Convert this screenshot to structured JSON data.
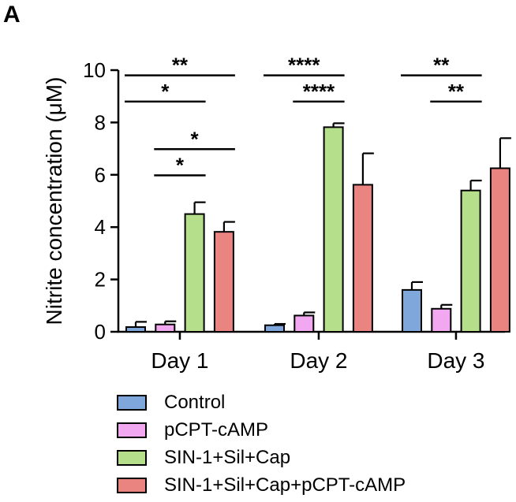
{
  "panel_label": "A",
  "colors": {
    "Control": "#7fa7dc",
    "pCPT-cAMP": "#f2a8f0",
    "SIN-1+Sil+Cap": "#b6df8c",
    "SIN-1+Sil+Cap+pCPT-cAMP": "#e98481"
  },
  "chart_data": {
    "type": "bar",
    "categories": [
      "Day 1",
      "Day 2",
      "Day 3"
    ],
    "ylabel": "Nitrite concentration (μM)",
    "ylim": [
      0,
      10
    ],
    "yticks": [
      0,
      2,
      4,
      6,
      8,
      10
    ],
    "series": [
      {
        "name": "Control",
        "values": [
          0.18,
          0.25,
          1.6
        ],
        "errors": [
          0.2,
          0.05,
          0.3
        ]
      },
      {
        "name": "pCPT-cAMP",
        "values": [
          0.28,
          0.62,
          0.88
        ],
        "errors": [
          0.12,
          0.12,
          0.15
        ]
      },
      {
        "name": "SIN-1+Sil+Cap",
        "values": [
          4.5,
          7.82,
          5.4
        ],
        "errors": [
          0.45,
          0.15,
          0.38
        ]
      },
      {
        "name": "SIN-1+Sil+Cap+pCPT-cAMP",
        "values": [
          3.82,
          5.62,
          6.25
        ],
        "errors": [
          0.38,
          1.2,
          1.15
        ]
      }
    ],
    "significance": [
      {
        "category": "Day 1",
        "from": 0,
        "to": 3,
        "label": "**",
        "y": 9.8
      },
      {
        "category": "Day 1",
        "from": 0,
        "to": 2,
        "label": "*",
        "y": 8.8
      },
      {
        "category": "Day 1",
        "from": 1,
        "to": 3,
        "label": "*",
        "y": 6.98
      },
      {
        "category": "Day 1",
        "from": 1,
        "to": 2,
        "label": "*",
        "y": 5.98
      },
      {
        "category": "Day 2",
        "from": 0,
        "to": 2,
        "label": "****",
        "y": 9.8
      },
      {
        "category": "Day 2",
        "from": 1,
        "to": 2,
        "label": "****",
        "y": 8.8
      },
      {
        "category": "Day 3",
        "from": 0,
        "to": 2,
        "label": "**",
        "y": 9.8
      },
      {
        "category": "Day 3",
        "from": 1,
        "to": 2,
        "label": "**",
        "y": 8.8
      }
    ],
    "legend_position": "bottom",
    "grid": false
  }
}
